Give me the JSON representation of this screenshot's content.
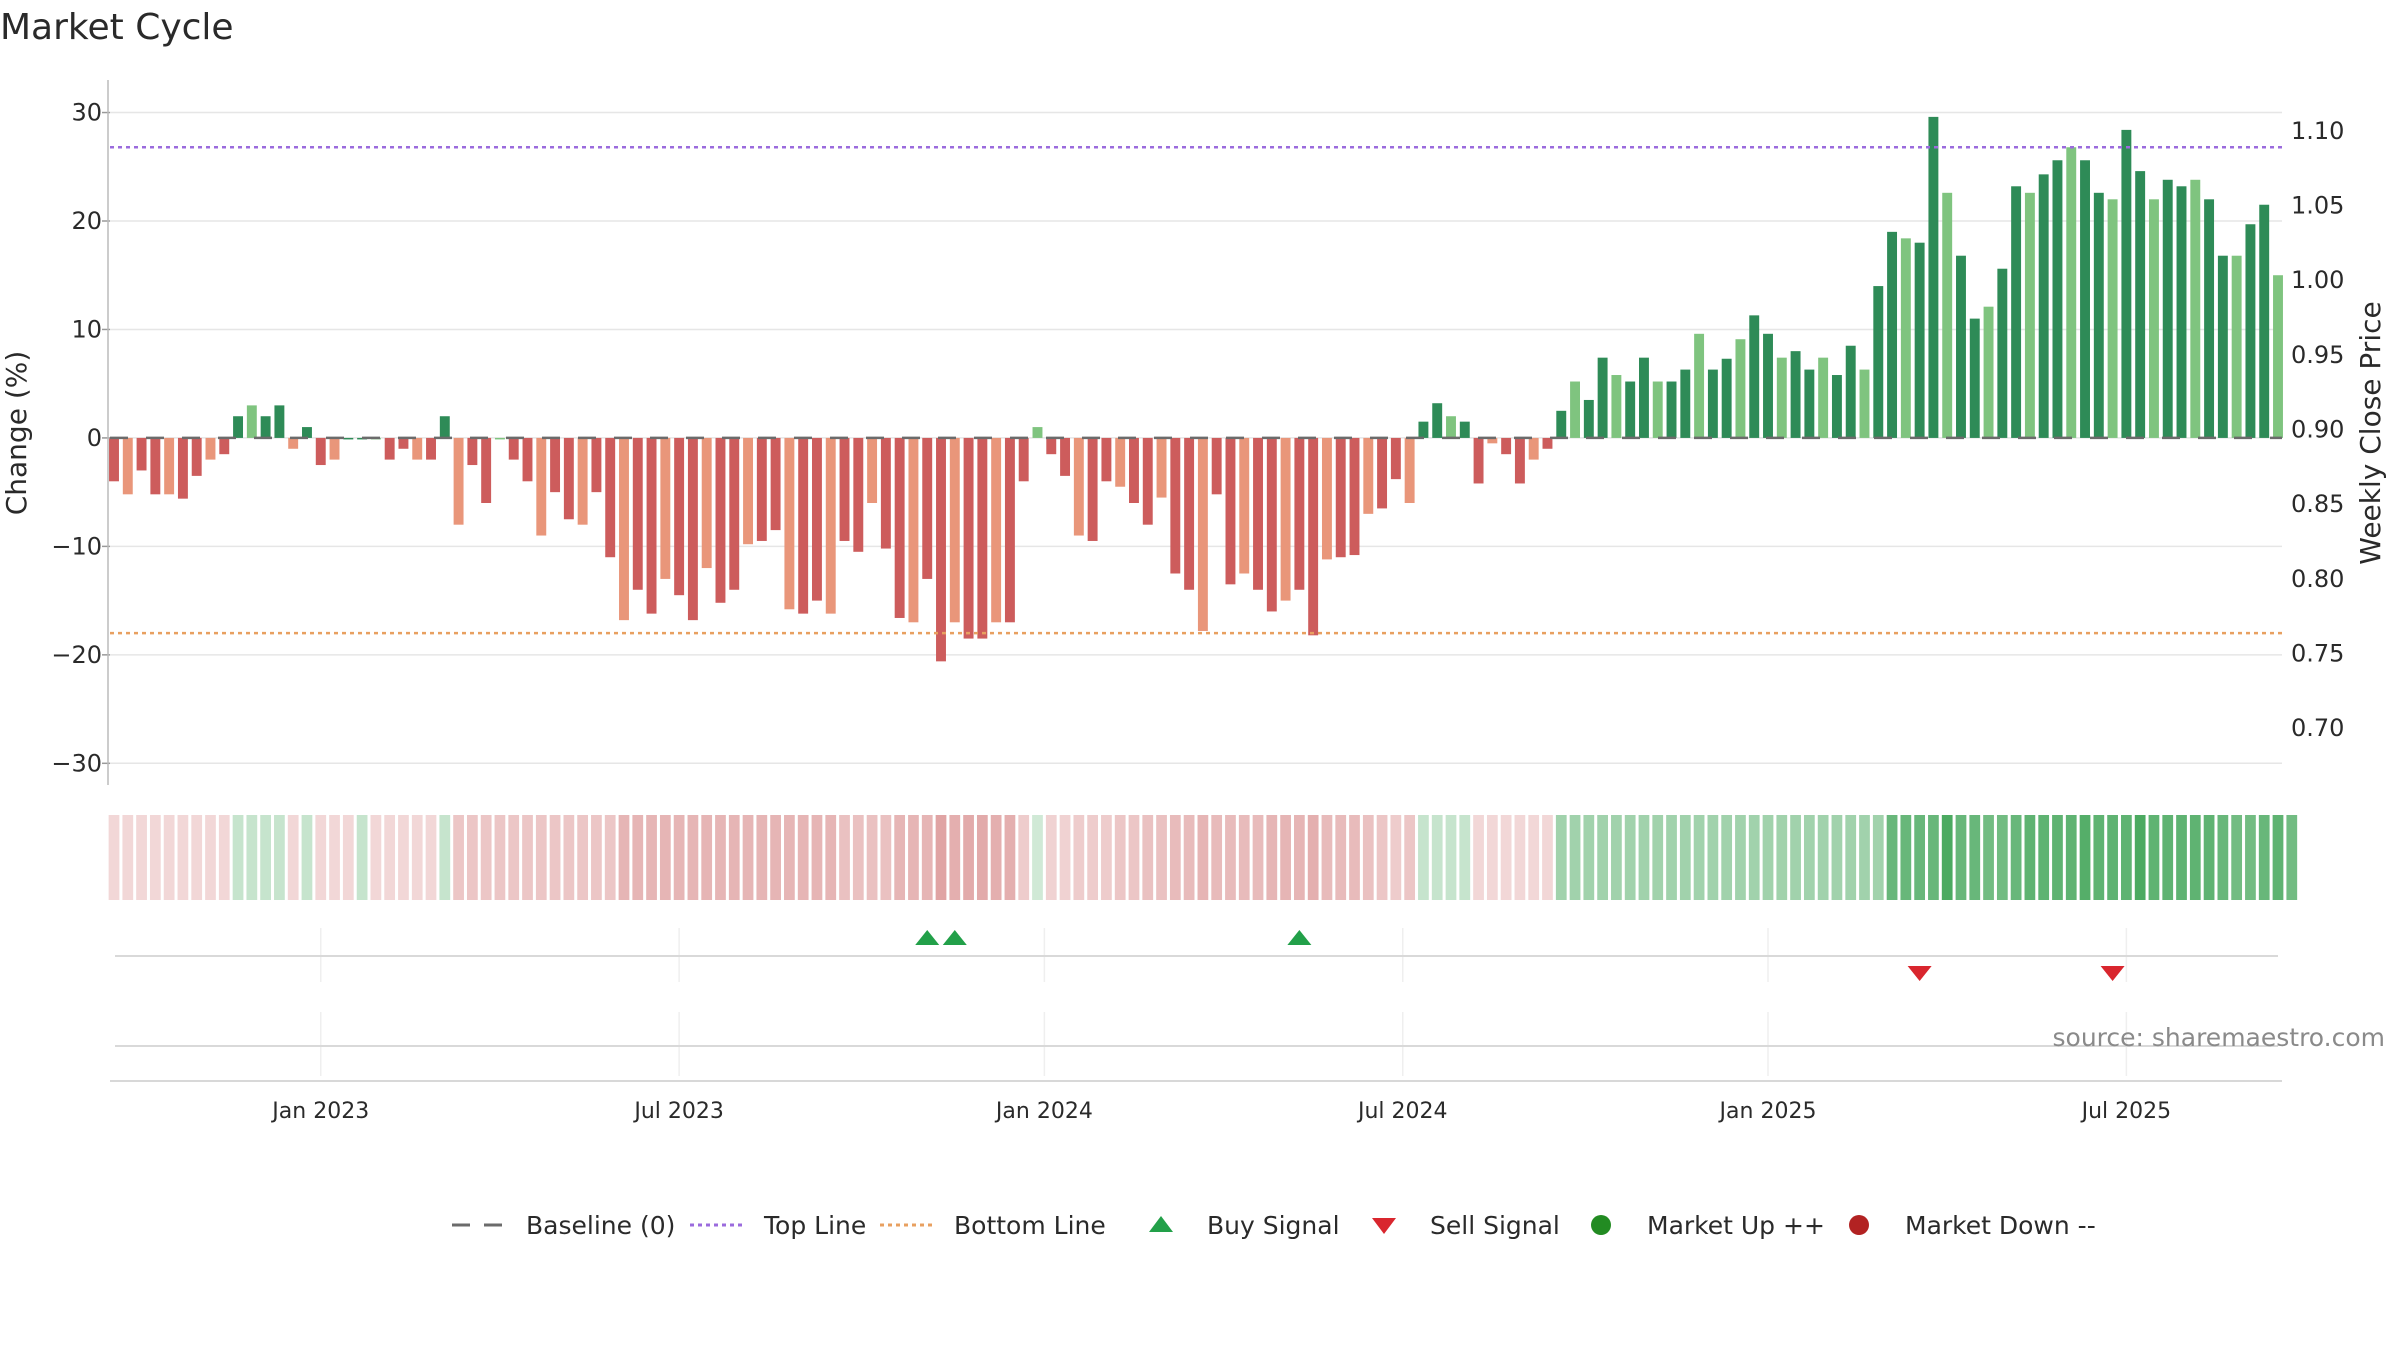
{
  "chart_data": {
    "type": "bar",
    "title": "Market Cycle",
    "ylabel": "Change (%)",
    "y2label": "Weekly Close Price",
    "ylim": [
      -32,
      33
    ],
    "y2lim": [
      0.662,
      1.134
    ],
    "yticks": [
      30,
      20,
      10,
      0,
      -10,
      -20,
      -30
    ],
    "yticks_labels": [
      "30",
      "20",
      "10",
      "0",
      "−10",
      "−20",
      "−30"
    ],
    "y2ticks": [
      1.1,
      1.05,
      1.0,
      0.95,
      0.9,
      0.85,
      0.8,
      0.75,
      0.7
    ],
    "y2ticks_labels": [
      "1.10",
      "1.05",
      "1.00",
      "0.95",
      "0.90",
      "0.85",
      "0.80",
      "0.75",
      "0.70"
    ],
    "x_ticks": [
      "Jan 2023",
      "Jul 2023",
      "Jan 2024",
      "Jul 2024",
      "Jan 2025",
      "Jul 2025"
    ],
    "x_tick_weeks": [
      15,
      41,
      67.5,
      93.5,
      120,
      146
    ],
    "top_line": 26.8,
    "bottom_line": -18,
    "grid": true,
    "weekly_change": [
      -4,
      -5.2,
      -3,
      -5.2,
      -5.2,
      -5.6,
      -3.5,
      -2,
      -1.5,
      2,
      3,
      2,
      3,
      -1,
      1,
      -2.5,
      -2,
      0,
      0,
      0,
      -2,
      -1,
      -2,
      -2,
      2,
      -8,
      -2.5,
      -6,
      0,
      -2,
      -4,
      -9,
      -5,
      -7.5,
      -8,
      -5,
      -11,
      -16.8,
      -14,
      -16.2,
      -13,
      -14.5,
      -16.8,
      -12,
      -15.2,
      -14,
      -9.8,
      -9.5,
      -8.5,
      -15.8,
      -16.2,
      -15,
      -16.2,
      -9.5,
      -10.5,
      -6,
      -10.2,
      -16.6,
      -17,
      -13,
      -20.6,
      -17,
      -18.5,
      -18.5,
      -17,
      -17,
      -4,
      1,
      -1.5,
      -3.5,
      -9,
      -9.5,
      -4,
      -4.5,
      -6,
      -8,
      -5.5,
      -12.5,
      -14,
      -17.8,
      -5.2,
      -13.5,
      -12.5,
      -14,
      -16,
      -15,
      -14,
      -18.2,
      -11.2,
      -11,
      -10.8,
      -7,
      -6.5,
      -3.8,
      -6,
      1.5,
      3.2,
      2,
      1.5,
      -4.2,
      -0.5,
      -1.5,
      -4.2,
      -2,
      -1,
      2.5,
      5.2,
      3.5,
      7.4,
      5.8,
      5.2,
      7.4,
      5.2,
      5.2,
      6.3,
      9.6,
      6.3,
      7.3,
      9.1,
      11.3,
      9.6,
      7.4,
      8,
      6.3,
      7.4,
      5.8,
      8.5,
      6.3,
      14,
      19,
      18.4,
      18,
      29.6,
      22.6,
      16.8,
      11,
      12.1,
      15.6,
      23.2,
      22.6,
      24.3,
      25.6,
      26.8,
      25.6,
      22.6,
      22,
      28.4,
      24.6,
      22,
      23.8,
      23.2,
      23.8,
      22,
      16.8,
      16.8,
      19.7,
      21.5,
      15
    ],
    "market_shade": [
      -0.35,
      -0.35,
      -0.35,
      -0.35,
      -0.35,
      -0.35,
      -0.35,
      -0.35,
      -0.35,
      0.3,
      0.3,
      0.3,
      0.3,
      -0.35,
      0.3,
      -0.35,
      -0.35,
      -0.35,
      0.3,
      -0.35,
      -0.35,
      -0.35,
      -0.35,
      -0.35,
      0.3,
      -0.5,
      -0.5,
      -0.5,
      -0.5,
      -0.5,
      -0.5,
      -0.5,
      -0.5,
      -0.5,
      -0.5,
      -0.5,
      -0.5,
      -0.65,
      -0.65,
      -0.65,
      -0.65,
      -0.65,
      -0.65,
      -0.65,
      -0.65,
      -0.65,
      -0.65,
      -0.65,
      -0.65,
      -0.65,
      -0.65,
      -0.65,
      -0.65,
      -0.55,
      -0.55,
      -0.55,
      -0.55,
      -0.65,
      -0.65,
      -0.65,
      -0.8,
      -0.7,
      -0.75,
      -0.75,
      -0.7,
      -0.7,
      -0.45,
      0.25,
      -0.4,
      -0.4,
      -0.45,
      -0.45,
      -0.45,
      -0.5,
      -0.5,
      -0.55,
      -0.55,
      -0.6,
      -0.6,
      -0.65,
      -0.6,
      -0.6,
      -0.6,
      -0.6,
      -0.65,
      -0.65,
      -0.65,
      -0.7,
      -0.6,
      -0.6,
      -0.6,
      -0.55,
      -0.5,
      -0.45,
      -0.5,
      0.3,
      0.3,
      0.3,
      0.3,
      -0.35,
      -0.35,
      -0.35,
      -0.35,
      -0.35,
      -0.35,
      0.5,
      0.5,
      0.5,
      0.5,
      0.5,
      0.5,
      0.5,
      0.5,
      0.5,
      0.5,
      0.5,
      0.5,
      0.5,
      0.5,
      0.5,
      0.5,
      0.5,
      0.5,
      0.5,
      0.5,
      0.5,
      0.5,
      0.5,
      0.5,
      0.8,
      0.8,
      0.8,
      0.8,
      0.95,
      0.8,
      0.8,
      0.75,
      0.75,
      0.8,
      0.85,
      0.85,
      0.85,
      0.85,
      0.9,
      0.85,
      0.85,
      0.85,
      0.95,
      0.85,
      0.85,
      0.85,
      0.85,
      0.85,
      0.8,
      0.75,
      0.75,
      0.8,
      0.85,
      0.75
    ],
    "buy_signals_week": [
      59,
      61,
      86
    ],
    "sell_signals_week": [
      131,
      145
    ],
    "series": [
      {
        "name": "Baseline (0)",
        "style": "dashed",
        "color": "#6b6b6b"
      },
      {
        "name": "Top Line",
        "style": "dotted",
        "color": "#9b6bdd"
      },
      {
        "name": "Bottom Line",
        "style": "dotted",
        "color": "#e8a060"
      },
      {
        "name": "Buy Signal",
        "marker": "triangle-up",
        "color": "#22a049"
      },
      {
        "name": "Sell Signal",
        "marker": "triangle-down",
        "color": "#d9262e"
      },
      {
        "name": "Market Up ++",
        "marker": "circle",
        "color": "#228b22"
      },
      {
        "name": "Market Down --",
        "marker": "circle",
        "color": "#b22222"
      }
    ],
    "legend_position": "bottom-center"
  },
  "source": "source: sharemaestro.com",
  "colors": {
    "strong_up": "#2e8b57",
    "light_up": "#7fc47f",
    "strong_down": "#cd5c5c",
    "light_down": "#e9967a",
    "top_line": "#9b6bdd",
    "bottom_line": "#e8a060",
    "grid": "#e6e6e6",
    "axis": "#cccccc"
  }
}
